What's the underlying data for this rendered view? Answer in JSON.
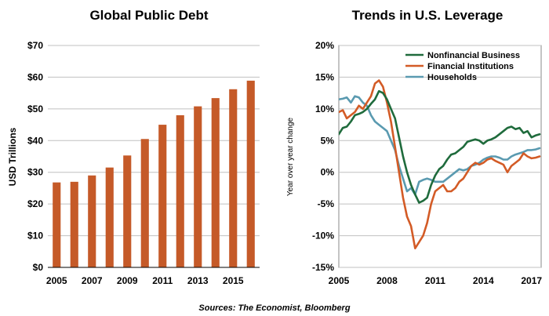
{
  "source_note": "Sources: The Economist, Bloomberg",
  "colors": {
    "bar": "#c55a28",
    "nonfinancial": "#1f6b3c",
    "financial": "#d35b26",
    "households": "#5a9ab0",
    "grid": "#c0c0c0"
  },
  "chart_data": [
    {
      "type": "bar",
      "title": "Global Public Debt",
      "xlabel": "",
      "ylabel": "USD Trillions",
      "categories": [
        2005,
        2006,
        2007,
        2008,
        2009,
        2010,
        2011,
        2012,
        2013,
        2014,
        2015,
        2016
      ],
      "x_tick_labels": [
        "2005",
        "2007",
        "2009",
        "2011",
        "2013",
        "2015"
      ],
      "values": [
        26.8,
        27.0,
        29.0,
        31.5,
        35.3,
        40.5,
        45.0,
        48.0,
        50.8,
        53.4,
        56.2,
        58.9
      ],
      "y_ticks": [
        "$0",
        "$10",
        "$20",
        "$30",
        "$40",
        "$50",
        "$60",
        "$70"
      ],
      "ylim": [
        0,
        70
      ],
      "grid": true
    },
    {
      "type": "line",
      "title": "Trends in U.S. Leverage",
      "xlabel": "",
      "ylabel": "Year over year change",
      "xlim": [
        2005,
        2017.6
      ],
      "ylim": [
        -15,
        20
      ],
      "x_tick_labels": [
        "2005",
        "2008",
        "2011",
        "2014",
        "2017"
      ],
      "y_ticks": [
        "20%",
        "15%",
        "10%",
        "5%",
        "0%",
        "-5%",
        "-10%",
        "-15%"
      ],
      "legend_position": "top-right",
      "grid": true,
      "series": [
        {
          "name": "Nonfinancial Business",
          "color_key": "nonfinancial",
          "x": [
            2005.0,
            2005.25,
            2005.5,
            2005.75,
            2006.0,
            2006.25,
            2006.5,
            2006.75,
            2007.0,
            2007.25,
            2007.5,
            2007.75,
            2008.0,
            2008.25,
            2008.5,
            2008.75,
            2009.0,
            2009.25,
            2009.5,
            2009.75,
            2010.0,
            2010.25,
            2010.5,
            2010.75,
            2011.0,
            2011.25,
            2011.5,
            2011.75,
            2012.0,
            2012.25,
            2012.5,
            2012.75,
            2013.0,
            2013.25,
            2013.5,
            2013.75,
            2014.0,
            2014.25,
            2014.5,
            2014.75,
            2015.0,
            2015.25,
            2015.5,
            2015.75,
            2016.0,
            2016.25,
            2016.5,
            2016.75,
            2017.0,
            2017.25,
            2017.5
          ],
          "y": [
            6.0,
            7.0,
            7.2,
            8.0,
            9.0,
            9.2,
            9.5,
            10.0,
            10.8,
            11.5,
            12.8,
            12.5,
            11.5,
            10.0,
            8.5,
            5.5,
            2.5,
            0.0,
            -2.0,
            -3.5,
            -4.8,
            -4.5,
            -4.0,
            -2.0,
            -0.5,
            0.5,
            1.0,
            2.0,
            2.8,
            3.0,
            3.5,
            4.0,
            4.8,
            5.0,
            5.2,
            5.0,
            4.5,
            5.0,
            5.2,
            5.5,
            6.0,
            6.5,
            7.0,
            7.2,
            6.8,
            7.0,
            6.2,
            6.5,
            5.5,
            5.8,
            6.0
          ]
        },
        {
          "name": "Financial Institutions",
          "color_key": "financial",
          "x": [
            2005.0,
            2005.25,
            2005.5,
            2005.75,
            2006.0,
            2006.25,
            2006.5,
            2006.75,
            2007.0,
            2007.25,
            2007.5,
            2007.75,
            2008.0,
            2008.25,
            2008.5,
            2008.75,
            2009.0,
            2009.25,
            2009.5,
            2009.75,
            2010.0,
            2010.25,
            2010.5,
            2010.75,
            2011.0,
            2011.25,
            2011.5,
            2011.75,
            2012.0,
            2012.25,
            2012.5,
            2012.75,
            2013.0,
            2013.25,
            2013.5,
            2013.75,
            2014.0,
            2014.25,
            2014.5,
            2014.75,
            2015.0,
            2015.25,
            2015.5,
            2015.75,
            2016.0,
            2016.25,
            2016.5,
            2016.75,
            2017.0,
            2017.25,
            2017.5
          ],
          "y": [
            9.5,
            9.8,
            8.5,
            9.0,
            9.5,
            10.5,
            10.0,
            11.0,
            12.0,
            14.0,
            14.5,
            13.5,
            11.0,
            8.0,
            4.0,
            0.0,
            -4.0,
            -7.0,
            -8.5,
            -12.0,
            -11.0,
            -10.0,
            -8.0,
            -5.0,
            -3.0,
            -2.5,
            -2.0,
            -3.0,
            -3.0,
            -2.5,
            -1.5,
            -1.0,
            0.0,
            1.0,
            1.5,
            1.2,
            1.5,
            2.0,
            2.2,
            1.8,
            1.5,
            1.2,
            0.0,
            1.0,
            1.5,
            2.0,
            3.0,
            2.5,
            2.2,
            2.3,
            2.5
          ]
        },
        {
          "name": "Households",
          "color_key": "households",
          "x": [
            2005.0,
            2005.25,
            2005.5,
            2005.75,
            2006.0,
            2006.25,
            2006.5,
            2006.75,
            2007.0,
            2007.25,
            2007.5,
            2007.75,
            2008.0,
            2008.25,
            2008.5,
            2008.75,
            2009.0,
            2009.25,
            2009.5,
            2009.75,
            2010.0,
            2010.25,
            2010.5,
            2010.75,
            2011.0,
            2011.25,
            2011.5,
            2011.75,
            2012.0,
            2012.25,
            2012.5,
            2012.75,
            2013.0,
            2013.25,
            2013.5,
            2013.75,
            2014.0,
            2014.25,
            2014.5,
            2014.75,
            2015.0,
            2015.25,
            2015.5,
            2015.75,
            2016.0,
            2016.25,
            2016.5,
            2016.75,
            2017.0,
            2017.25,
            2017.5
          ],
          "y": [
            11.5,
            11.6,
            11.8,
            11.0,
            12.0,
            11.8,
            11.0,
            10.5,
            9.0,
            8.0,
            7.5,
            7.0,
            6.5,
            5.0,
            3.5,
            1.0,
            -1.0,
            -3.0,
            -2.5,
            -3.5,
            -1.5,
            -1.2,
            -1.0,
            -1.2,
            -1.5,
            -1.5,
            -1.5,
            -1.0,
            -0.5,
            0.0,
            0.5,
            0.3,
            0.5,
            1.0,
            1.2,
            1.5,
            2.0,
            2.3,
            2.5,
            2.5,
            2.3,
            2.0,
            2.0,
            2.5,
            2.8,
            3.0,
            3.2,
            3.5,
            3.5,
            3.6,
            3.8
          ]
        }
      ]
    }
  ]
}
